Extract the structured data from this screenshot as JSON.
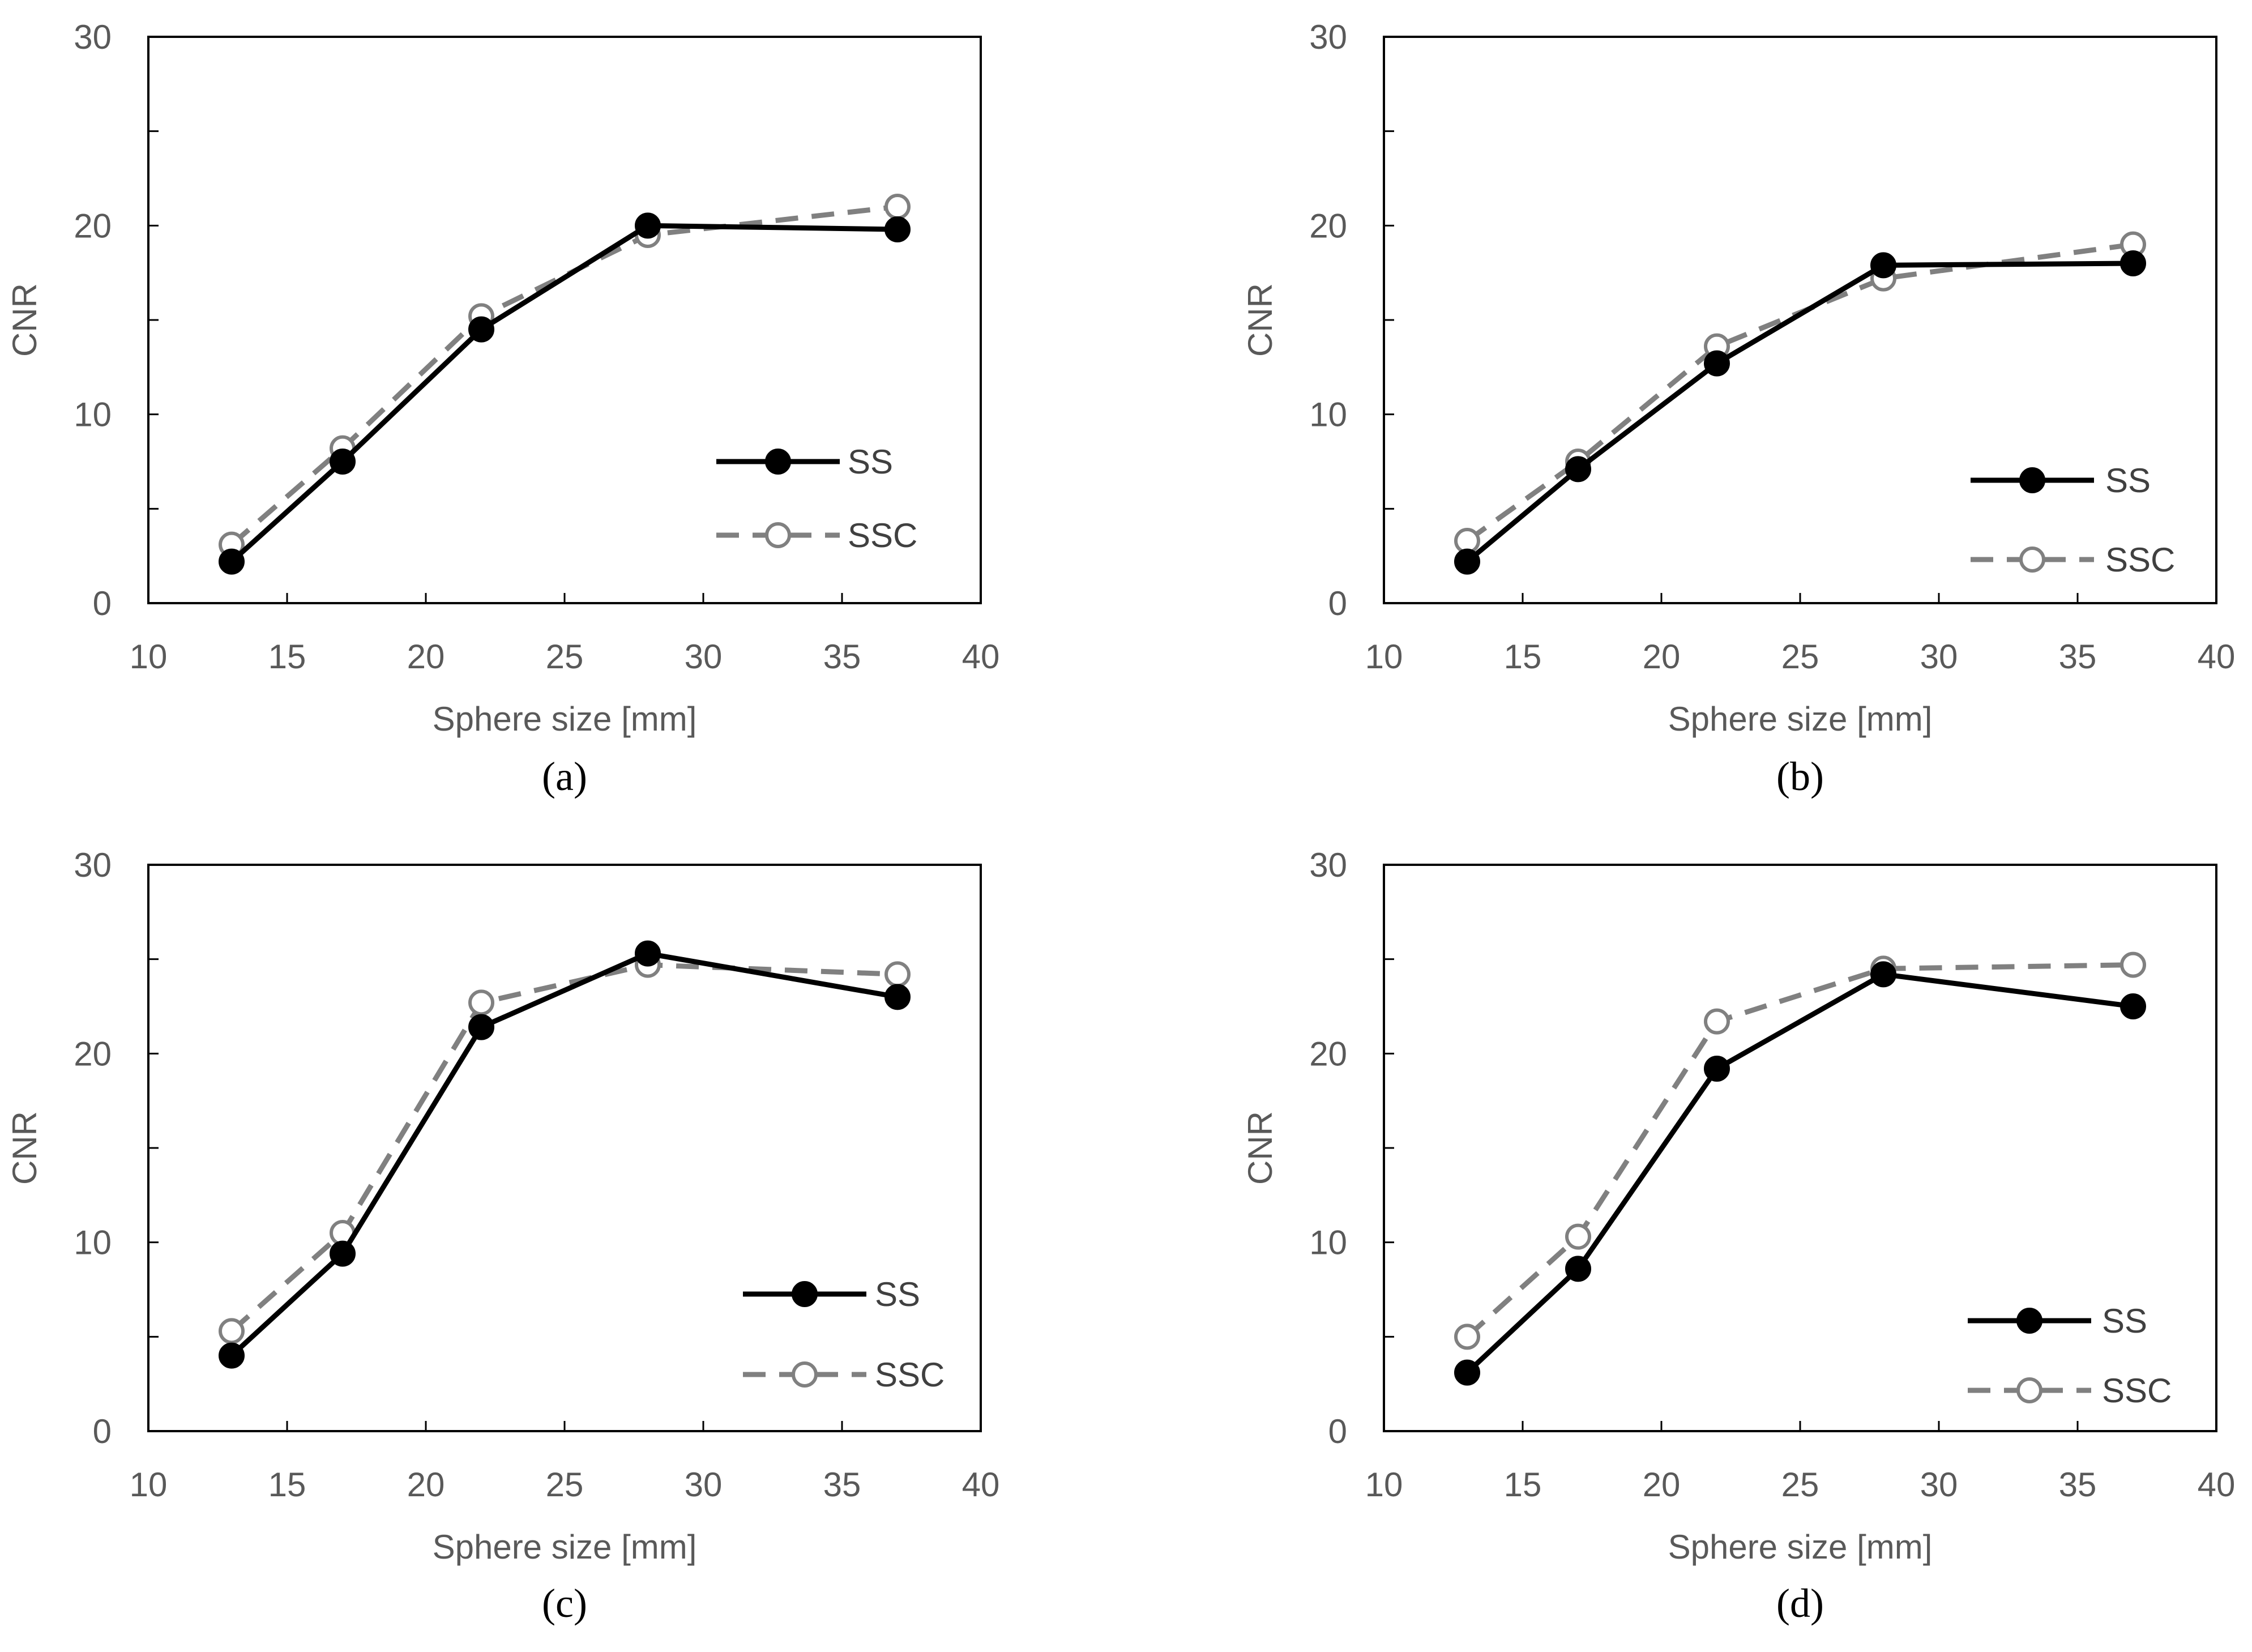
{
  "colors": {
    "ss": "#000000",
    "ssc": "#808080",
    "axis": "#000000",
    "text": "#595959"
  },
  "chart_data": [
    {
      "type": "line",
      "panel": "a",
      "panel_label": "(a)",
      "xlabel": "Sphere size [mm]",
      "ylabel": "CNR",
      "xlim": [
        10,
        40
      ],
      "ylim": [
        0,
        30
      ],
      "xticks": [
        10,
        15,
        20,
        25,
        30,
        35,
        40
      ],
      "yticks": [
        0,
        10,
        20,
        30
      ],
      "legend_position": "lower-right",
      "x": [
        13,
        17,
        22,
        28,
        37
      ],
      "series": [
        {
          "name": "SS",
          "style": "solid-filled",
          "values": [
            2.2,
            7.5,
            14.5,
            20.0,
            19.8
          ]
        },
        {
          "name": "SSC",
          "style": "dashed-open",
          "values": [
            3.1,
            8.2,
            15.2,
            19.5,
            21.0
          ]
        }
      ]
    },
    {
      "type": "line",
      "panel": "b",
      "panel_label": "(b)",
      "xlabel": "Sphere size [mm]",
      "ylabel": "CNR",
      "xlim": [
        10,
        40
      ],
      "ylim": [
        0,
        30
      ],
      "xticks": [
        10,
        15,
        20,
        25,
        30,
        35,
        40
      ],
      "yticks": [
        0,
        10,
        20,
        30
      ],
      "legend_position": "lower-right",
      "x": [
        13,
        17,
        22,
        28,
        37
      ],
      "series": [
        {
          "name": "SS",
          "style": "solid-filled",
          "values": [
            2.2,
            7.1,
            12.7,
            17.9,
            18.0
          ]
        },
        {
          "name": "SSC",
          "style": "dashed-open",
          "values": [
            3.3,
            7.5,
            13.6,
            17.2,
            19.0
          ]
        }
      ]
    },
    {
      "type": "line",
      "panel": "c",
      "panel_label": "(c)",
      "xlabel": "Sphere size [mm]",
      "ylabel": "CNR",
      "xlim": [
        10,
        40
      ],
      "ylim": [
        0,
        30
      ],
      "xticks": [
        10,
        15,
        20,
        25,
        30,
        35,
        40
      ],
      "yticks": [
        0,
        10,
        20,
        30
      ],
      "legend_position": "lower-right",
      "x": [
        13,
        17,
        22,
        28,
        37
      ],
      "series": [
        {
          "name": "SS",
          "style": "solid-filled",
          "values": [
            4.0,
            9.4,
            21.4,
            25.3,
            23.0
          ]
        },
        {
          "name": "SSC",
          "style": "dashed-open",
          "values": [
            5.3,
            10.5,
            22.7,
            24.7,
            24.2
          ]
        }
      ]
    },
    {
      "type": "line",
      "panel": "d",
      "panel_label": "(d)",
      "xlabel": "Sphere size [mm]",
      "ylabel": "CNR",
      "xlim": [
        10,
        40
      ],
      "ylim": [
        0,
        30
      ],
      "xticks": [
        10,
        15,
        20,
        25,
        30,
        35,
        40
      ],
      "yticks": [
        0,
        10,
        20,
        30
      ],
      "legend_position": "lower-right",
      "x": [
        13,
        17,
        22,
        28,
        37
      ],
      "series": [
        {
          "name": "SS",
          "style": "solid-filled",
          "values": [
            3.1,
            8.6,
            19.2,
            24.2,
            22.5
          ]
        },
        {
          "name": "SSC",
          "style": "dashed-open",
          "values": [
            5.0,
            10.3,
            21.7,
            24.5,
            24.7
          ]
        }
      ]
    }
  ]
}
